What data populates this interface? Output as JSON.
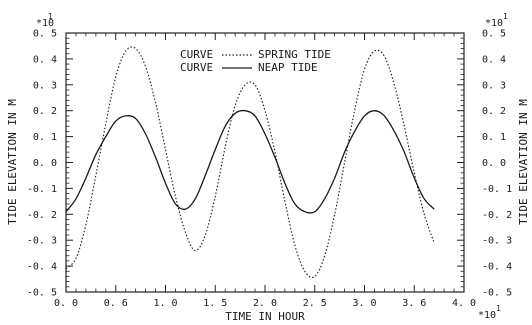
{
  "chart_data": {
    "type": "line",
    "xlabel": "TIME IN HOUR",
    "ylabel": "TIDE ELEVATION IN M",
    "ylabel_right": "TIDE ELEVATION IN M",
    "x_multiplier": "*10",
    "x_multiplier_exp": "1",
    "y_multiplier_left": "*10",
    "y_multiplier_left_exp": "1",
    "y_multiplier_right": "*10",
    "y_multiplier_right_exp": "1",
    "xlim": [
      0.0,
      4.0
    ],
    "ylim": [
      -0.5,
      0.5
    ],
    "xticks": [
      "0. 0",
      "0. 6",
      "1. 0",
      "1. 5",
      "2. 0",
      "2. 5",
      "3. 0",
      "3. 6",
      "4. 0"
    ],
    "yticks_left": [
      "0. 5",
      "0. 4",
      "0. 3",
      "0. 2",
      "0. 1",
      "0. 0",
      "-0. 1",
      "-0. 2",
      "-0. 3",
      "-0. 4",
      "-0. 5"
    ],
    "yticks_right": [
      "0. 5",
      "0. 4",
      "0. 3",
      "0. 2",
      "0. 1",
      "0. 0",
      "-0. 1",
      "-0. 2",
      "-0. 3",
      "-0. 4",
      "-0. 5"
    ],
    "grid": false,
    "legend_position": "top-center",
    "series": [
      {
        "name": "SPRING TIDE",
        "legend_prefix": "CURVE",
        "style": "dotted",
        "x": [
          0.0,
          0.1,
          0.2,
          0.3,
          0.4,
          0.5,
          0.6,
          0.7,
          0.8,
          0.9,
          1.0,
          1.1,
          1.2,
          1.3,
          1.4,
          1.5,
          1.6,
          1.7,
          1.8,
          1.9,
          2.0,
          2.1,
          2.2,
          2.3,
          2.4,
          2.5,
          2.6,
          2.7,
          2.8,
          2.9,
          3.0,
          3.1,
          3.2,
          3.3,
          3.4,
          3.5,
          3.6,
          3.7
        ],
        "y": [
          -0.41,
          -0.37,
          -0.24,
          -0.05,
          0.15,
          0.33,
          0.43,
          0.44,
          0.37,
          0.23,
          0.05,
          -0.13,
          -0.27,
          -0.34,
          -0.28,
          -0.13,
          0.06,
          0.22,
          0.3,
          0.3,
          0.2,
          0.04,
          -0.15,
          -0.32,
          -0.42,
          -0.44,
          -0.36,
          -0.2,
          0.0,
          0.2,
          0.36,
          0.43,
          0.41,
          0.3,
          0.14,
          -0.04,
          -0.2,
          -0.31
        ]
      },
      {
        "name": "NEAP TIDE",
        "legend_prefix": "CURVE",
        "style": "solid",
        "x": [
          0.0,
          0.1,
          0.2,
          0.3,
          0.4,
          0.5,
          0.6,
          0.7,
          0.8,
          0.9,
          1.0,
          1.1,
          1.2,
          1.3,
          1.4,
          1.5,
          1.6,
          1.7,
          1.8,
          1.9,
          2.0,
          2.1,
          2.2,
          2.3,
          2.4,
          2.5,
          2.6,
          2.7,
          2.8,
          2.9,
          3.0,
          3.1,
          3.2,
          3.3,
          3.4,
          3.5,
          3.6,
          3.7
        ],
        "y": [
          -0.19,
          -0.14,
          -0.06,
          0.03,
          0.1,
          0.16,
          0.18,
          0.17,
          0.11,
          0.02,
          -0.08,
          -0.16,
          -0.18,
          -0.14,
          -0.05,
          0.05,
          0.14,
          0.19,
          0.2,
          0.18,
          0.11,
          0.02,
          -0.08,
          -0.16,
          -0.19,
          -0.19,
          -0.14,
          -0.06,
          0.04,
          0.12,
          0.18,
          0.2,
          0.18,
          0.12,
          0.04,
          -0.06,
          -0.14,
          -0.18
        ]
      }
    ]
  }
}
